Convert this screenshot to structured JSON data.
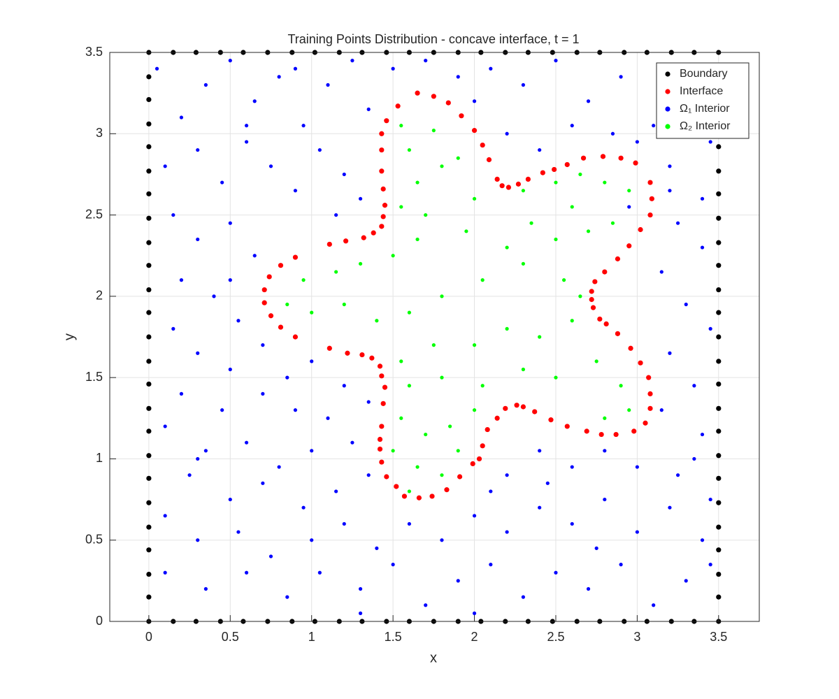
{
  "chart_data": {
    "type": "scatter",
    "title": "Training Points Distribution - concave interface, t = 1",
    "xlabel": "x",
    "ylabel": "y",
    "xlim": [
      -0.24,
      3.75
    ],
    "ylim": [
      0,
      3.5
    ],
    "xticks": [
      0,
      0.5,
      1,
      1.5,
      2,
      2.5,
      3,
      3.5
    ],
    "yticks": [
      0,
      0.5,
      1,
      1.5,
      2,
      2.5,
      3,
      3.5
    ],
    "grid": true,
    "legend": "northeast",
    "series": [
      {
        "name": "Boundary",
        "color": "#000000",
        "x": [
          0,
          0.15,
          0.29,
          0.44,
          0.58,
          0.73,
          0.88,
          1.02,
          1.17,
          1.31,
          1.46,
          1.6,
          1.75,
          1.9,
          2.04,
          2.19,
          2.33,
          2.48,
          2.63,
          2.77,
          2.92,
          3.06,
          3.21,
          3.35,
          3.5,
          0,
          0.15,
          0.29,
          0.44,
          0.58,
          0.73,
          0.88,
          1.02,
          1.17,
          1.31,
          1.46,
          1.6,
          1.75,
          1.9,
          2.04,
          2.19,
          2.33,
          2.48,
          2.63,
          2.77,
          2.92,
          3.06,
          3.21,
          3.35,
          3.5,
          0,
          0,
          0,
          0,
          0,
          0,
          0,
          0,
          0,
          0,
          0,
          0,
          0,
          0,
          0,
          0,
          0,
          0,
          0,
          0,
          0,
          0,
          0,
          3.5,
          3.5,
          3.5,
          3.5,
          3.5,
          3.5,
          3.5,
          3.5,
          3.5,
          3.5,
          3.5,
          3.5,
          3.5,
          3.5,
          3.5,
          3.5,
          3.5,
          3.5,
          3.5,
          3.5,
          3.5,
          3.5,
          3.5
        ],
        "y": [
          0,
          0,
          0,
          0,
          0,
          0,
          0,
          0,
          0,
          0,
          0,
          0,
          0,
          0,
          0,
          0,
          0,
          0,
          0,
          0,
          0,
          0,
          0,
          0,
          0,
          3.5,
          3.5,
          3.5,
          3.5,
          3.5,
          3.5,
          3.5,
          3.5,
          3.5,
          3.5,
          3.5,
          3.5,
          3.5,
          3.5,
          3.5,
          3.5,
          3.5,
          3.5,
          3.5,
          3.5,
          3.5,
          3.5,
          3.5,
          3.5,
          3.5,
          0.15,
          0.29,
          0.44,
          0.58,
          0.73,
          0.88,
          1.02,
          1.17,
          1.31,
          1.46,
          1.6,
          1.75,
          1.9,
          2.04,
          2.19,
          2.33,
          2.48,
          2.63,
          2.77,
          2.92,
          3.06,
          3.21,
          3.35,
          0.15,
          0.29,
          0.44,
          0.58,
          0.73,
          0.88,
          1.02,
          1.17,
          1.31,
          1.46,
          1.6,
          1.75,
          1.9,
          2.04,
          2.19,
          2.33,
          2.48,
          2.63,
          2.77,
          2.92,
          3.06,
          3.21,
          3.35
        ]
      },
      {
        "name": "Interface",
        "color": "#ff0000",
        "x": [
          1.53,
          1.65,
          1.75,
          1.84,
          1.92,
          2.0,
          2.05,
          2.09,
          2.14,
          2.17,
          2.21,
          2.27,
          2.33,
          2.42,
          2.49,
          2.57,
          2.67,
          2.79,
          2.9,
          2.99,
          3.08,
          3.09,
          3.08,
          3.02,
          2.95,
          2.88,
          2.8,
          2.74,
          2.72,
          2.72,
          2.73,
          2.77,
          2.81,
          2.88,
          2.96,
          3.02,
          3.07,
          3.08,
          3.08,
          3.05,
          2.98,
          2.87,
          2.78,
          2.69,
          2.57,
          2.47,
          2.37,
          2.3,
          2.26,
          2.19,
          2.14,
          2.08,
          2.05,
          2.03,
          1.99,
          1.91,
          1.83,
          1.74,
          1.66,
          1.57,
          1.52,
          1.46,
          1.43,
          1.42,
          1.42,
          1.43,
          1.44,
          1.45,
          1.43,
          1.42,
          1.37,
          1.31,
          1.22,
          1.11,
          0.9,
          0.81,
          0.75,
          0.71,
          0.71,
          0.74,
          0.81,
          0.9,
          1.11,
          1.21,
          1.32,
          1.38,
          1.43,
          1.44,
          1.45,
          1.44,
          1.43,
          1.43,
          1.43,
          1.46
        ],
        "y": [
          3.17,
          3.25,
          3.23,
          3.19,
          3.11,
          3.02,
          2.93,
          2.84,
          2.72,
          2.68,
          2.67,
          2.69,
          2.72,
          2.76,
          2.78,
          2.81,
          2.85,
          2.86,
          2.85,
          2.82,
          2.7,
          2.6,
          2.5,
          2.41,
          2.31,
          2.23,
          2.15,
          2.09,
          2.03,
          1.98,
          1.93,
          1.86,
          1.83,
          1.77,
          1.68,
          1.59,
          1.5,
          1.4,
          1.31,
          1.22,
          1.17,
          1.15,
          1.15,
          1.17,
          1.2,
          1.24,
          1.29,
          1.32,
          1.33,
          1.31,
          1.25,
          1.18,
          1.08,
          1.0,
          0.97,
          0.89,
          0.81,
          0.77,
          0.76,
          0.77,
          0.83,
          0.89,
          0.98,
          1.06,
          1.12,
          1.2,
          1.34,
          1.44,
          1.51,
          1.57,
          1.62,
          1.64,
          1.65,
          1.68,
          1.75,
          1.81,
          1.88,
          1.96,
          2.04,
          2.12,
          2.19,
          2.24,
          2.32,
          2.34,
          2.36,
          2.39,
          2.43,
          2.49,
          2.56,
          2.66,
          2.77,
          2.9,
          3.0,
          3.08
        ]
      },
      {
        "name": "Ω₁ Interior",
        "color": "#0000ff",
        "x": [
          0.05,
          0.2,
          0.35,
          0.5,
          0.65,
          0.8,
          0.95,
          1.1,
          1.25,
          1.35,
          1.5,
          1.7,
          1.9,
          2.1,
          2.3,
          2.5,
          2.7,
          2.9,
          3.1,
          3.3,
          3.45,
          0.1,
          0.3,
          0.45,
          0.6,
          0.75,
          0.9,
          1.05,
          1.2,
          1.3,
          2.0,
          2.2,
          2.4,
          2.6,
          2.85,
          3.2,
          3.4,
          3.25,
          3.4,
          3.15,
          3.3,
          3.45,
          3.2,
          3.35,
          3.15,
          3.4,
          0.15,
          0.3,
          0.5,
          0.65,
          0.2,
          0.4,
          0.55,
          0.15,
          0.3,
          0.5,
          0.7,
          0.85,
          1.0,
          1.2,
          1.35,
          1.1,
          0.9,
          0.7,
          0.45,
          0.2,
          0.1,
          0.35,
          0.6,
          0.8,
          1.0,
          1.25,
          1.35,
          1.15,
          0.95,
          0.7,
          0.5,
          0.25,
          0.1,
          0.3,
          0.55,
          0.75,
          1.0,
          1.2,
          1.4,
          1.6,
          1.8,
          2.0,
          2.2,
          2.4,
          2.6,
          2.8,
          3.0,
          3.2,
          3.4,
          0.1,
          0.35,
          0.6,
          0.85,
          1.05,
          1.3,
          1.5,
          1.7,
          1.9,
          2.1,
          2.3,
          2.5,
          2.7,
          2.9,
          3.1,
          3.3,
          3.45,
          2.2,
          2.4,
          2.6,
          2.8,
          3.0,
          3.25,
          2.1,
          2.45,
          3.0,
          2.95,
          3.2,
          3.45,
          0.6,
          0.9,
          1.15,
          0.5,
          0.3,
          1.3,
          2.0,
          2.75,
          3.35,
          3.45
        ],
        "y": [
          3.4,
          3.1,
          3.3,
          3.45,
          3.2,
          3.35,
          3.05,
          3.3,
          3.45,
          3.15,
          3.4,
          3.45,
          3.35,
          3.4,
          3.3,
          3.45,
          3.2,
          3.35,
          3.05,
          3.4,
          3.15,
          2.8,
          2.9,
          2.7,
          2.95,
          2.8,
          2.65,
          2.9,
          2.75,
          2.6,
          3.2,
          3.0,
          2.9,
          3.05,
          3.0,
          2.8,
          2.6,
          2.45,
          2.3,
          2.15,
          1.95,
          1.8,
          1.65,
          1.45,
          1.3,
          1.15,
          2.5,
          2.35,
          2.45,
          2.25,
          2.1,
          2.0,
          1.85,
          1.8,
          1.65,
          1.55,
          1.7,
          1.5,
          1.6,
          1.45,
          1.35,
          1.25,
          1.3,
          1.4,
          1.3,
          1.4,
          1.2,
          1.05,
          1.1,
          0.95,
          1.05,
          1.1,
          0.9,
          0.8,
          0.7,
          0.85,
          0.75,
          0.9,
          0.65,
          0.5,
          0.55,
          0.4,
          0.5,
          0.6,
          0.45,
          0.6,
          0.5,
          0.65,
          0.55,
          0.7,
          0.6,
          0.75,
          0.55,
          0.7,
          0.5,
          0.3,
          0.2,
          0.3,
          0.15,
          0.3,
          0.2,
          0.35,
          0.1,
          0.25,
          0.35,
          0.15,
          0.3,
          0.2,
          0.35,
          0.1,
          0.25,
          0.35,
          0.9,
          1.05,
          0.95,
          1.05,
          0.95,
          0.9,
          0.8,
          0.85,
          2.95,
          2.55,
          2.65,
          2.95,
          3.05,
          3.4,
          2.5,
          2.1,
          1.0,
          0.05,
          0.05,
          0.45,
          1.0,
          0.75
        ]
      },
      {
        "name": "Ω₂ Interior",
        "color": "#00ff00",
        "x": [
          1.55,
          1.75,
          1.6,
          1.8,
          1.65,
          1.9,
          1.55,
          1.7,
          2.0,
          2.3,
          2.5,
          2.65,
          2.8,
          2.95,
          2.6,
          2.85,
          2.7,
          2.5,
          2.2,
          1.95,
          1.65,
          1.5,
          1.3,
          1.15,
          0.95,
          0.85,
          1.0,
          1.2,
          1.4,
          1.6,
          1.8,
          2.05,
          2.3,
          2.55,
          2.65,
          2.6,
          2.4,
          2.2,
          2.0,
          1.75,
          1.55,
          1.6,
          1.8,
          2.05,
          2.3,
          2.5,
          2.75,
          2.9,
          2.95,
          2.8,
          2.0,
          1.85,
          1.7,
          1.55,
          1.5,
          1.65,
          1.8,
          1.6,
          1.9,
          2.35
        ],
        "y": [
          3.05,
          3.02,
          2.9,
          2.8,
          2.7,
          2.85,
          2.55,
          2.5,
          2.6,
          2.65,
          2.7,
          2.75,
          2.7,
          2.65,
          2.55,
          2.45,
          2.4,
          2.35,
          2.3,
          2.4,
          2.35,
          2.25,
          2.2,
          2.15,
          2.1,
          1.95,
          1.9,
          1.95,
          1.85,
          1.9,
          2.0,
          2.1,
          2.2,
          2.1,
          2.0,
          1.85,
          1.75,
          1.8,
          1.7,
          1.7,
          1.6,
          1.45,
          1.5,
          1.45,
          1.55,
          1.5,
          1.6,
          1.45,
          1.3,
          1.25,
          1.3,
          1.2,
          1.15,
          1.25,
          1.05,
          0.95,
          0.9,
          0.8,
          1.05,
          2.45
        ]
      }
    ]
  }
}
